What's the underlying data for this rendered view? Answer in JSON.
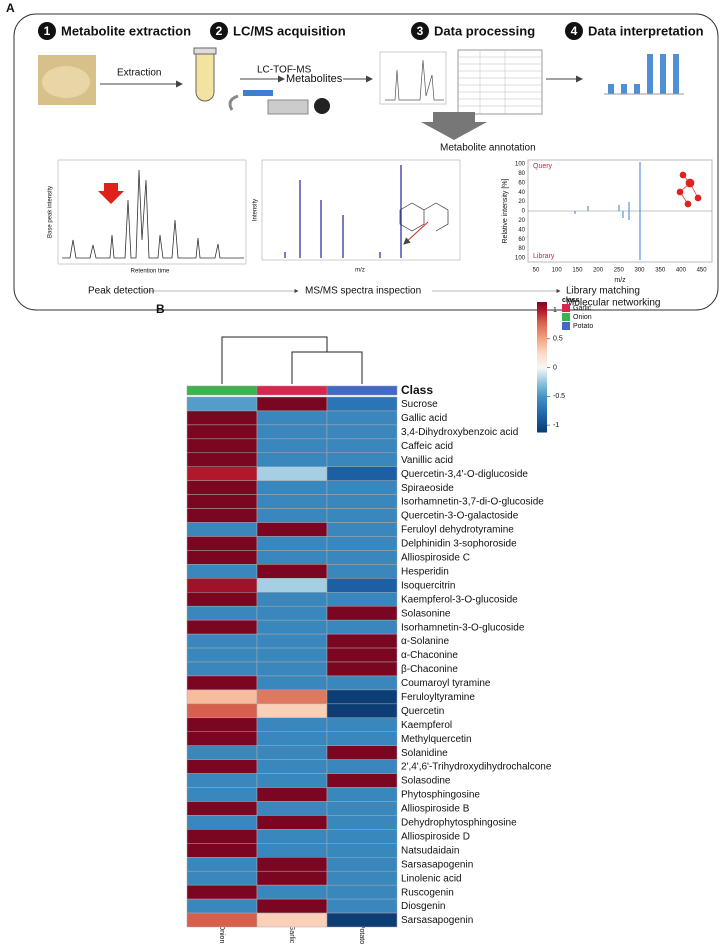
{
  "panel_a": {
    "panel_label": "A",
    "steps": [
      {
        "number": "1",
        "title": "Metabolite extraction"
      },
      {
        "number": "2",
        "title": "LC/MS acquisition"
      },
      {
        "number": "3",
        "title": "Data processing"
      },
      {
        "number": "4",
        "title": "Data interpretation"
      }
    ],
    "extraction": "Extraction",
    "instrument": "LC-TOF-MS",
    "metabolites": "Metabolites",
    "annotation": "Metabolite annotation",
    "chromatogram": {
      "ylabel": "Base peak intensity",
      "xlabel": "Retention time"
    },
    "spectrum": {
      "ylabel": "Intensity",
      "xlabel": "m/z"
    },
    "mirror": {
      "query": "Query",
      "library": "Library",
      "ylabel": "Relative intensity [%]",
      "xlabel": "m/z",
      "yticks": [
        "100",
        "80",
        "60",
        "40",
        "20",
        "0",
        "20",
        "40",
        "60",
        "80",
        "100"
      ],
      "xticks": [
        "50",
        "100",
        "150",
        "200",
        "250",
        "300",
        "350",
        "400",
        "450"
      ]
    },
    "bottom": [
      "Peak detection",
      "MS/MS spectra inspection",
      "Library matching",
      "Molecular networking"
    ]
  },
  "chart_data": {
    "type": "heatmap",
    "panel_label": "B",
    "class_title": "Class",
    "columns": [
      "Onion",
      "Garlic",
      "Potato"
    ],
    "column_colors": [
      "#3cb44b",
      "#d7254f",
      "#4169c8"
    ],
    "rows": [
      "Sucrose",
      "Gallic acid",
      "3,4-Dihydroxybenzoic acid",
      "Caffeic acid",
      "Vanillic acid",
      "Quercetin-3,4'-O-diglucoside",
      "Spiraeoside",
      "Isorhamnetin-3,7-di-O-glucoside",
      "Quercetin-3-O-galactoside",
      "Feruloyl dehydrotyramine",
      "Delphinidin 3-sophoroside",
      "Alliospiroside C",
      "Hesperidin",
      "Isoquercitrin",
      "Kaempferol-3-O-glucoside",
      "Solasonine",
      "Isorhamnetin-3-O-glucoside",
      "α-Solanine",
      "α-Chaconine",
      "β-Chaconine",
      "Coumaroyl tyramine",
      "Feruloyltyramine",
      "Quercetin",
      "Kaempferol",
      "Methylquercetin",
      "Solanidine",
      "2',4',6'-Trihydroxydihydrochalcone",
      "Solasodine",
      "Phytosphingosine",
      " Alliospiroside B",
      "Dehydrophytosphingosine",
      "Alliospiroside D",
      "Natsudaidain",
      "Sarsasapogenin",
      "Linolenic acid",
      "Ruscogenin",
      "Diosgenin",
      "Sarsasapogenin"
    ],
    "values": [
      [
        -0.45,
        1.15,
        -0.7
      ],
      [
        1.15,
        -0.58,
        -0.58
      ],
      [
        1.15,
        -0.58,
        -0.58
      ],
      [
        1.15,
        -0.58,
        -0.58
      ],
      [
        1.15,
        -0.58,
        -0.58
      ],
      [
        1.0,
        -0.2,
        -0.85
      ],
      [
        1.15,
        -0.58,
        -0.58
      ],
      [
        1.15,
        -0.58,
        -0.58
      ],
      [
        1.15,
        -0.58,
        -0.58
      ],
      [
        -0.58,
        1.15,
        -0.58
      ],
      [
        1.15,
        -0.58,
        -0.58
      ],
      [
        1.15,
        -0.58,
        -0.58
      ],
      [
        -0.58,
        1.15,
        -0.58
      ],
      [
        1.05,
        -0.2,
        -0.85
      ],
      [
        1.15,
        -0.58,
        -0.58
      ],
      [
        -0.58,
        -0.58,
        1.15
      ],
      [
        1.15,
        -0.58,
        -0.58
      ],
      [
        -0.58,
        -0.58,
        1.15
      ],
      [
        -0.58,
        -0.58,
        1.15
      ],
      [
        -0.58,
        -0.58,
        1.15
      ],
      [
        1.15,
        -0.58,
        -0.58
      ],
      [
        0.4,
        0.7,
        -1.1
      ],
      [
        0.8,
        0.3,
        -1.1
      ],
      [
        1.15,
        -0.58,
        -0.58
      ],
      [
        1.15,
        -0.58,
        -0.58
      ],
      [
        -0.58,
        -0.58,
        1.15
      ],
      [
        1.15,
        -0.58,
        -0.58
      ],
      [
        -0.58,
        -0.58,
        1.15
      ],
      [
        -0.58,
        1.15,
        -0.58
      ],
      [
        1.15,
        -0.58,
        -0.58
      ],
      [
        -0.58,
        1.15,
        -0.58
      ],
      [
        1.15,
        -0.58,
        -0.58
      ],
      [
        1.15,
        -0.58,
        -0.58
      ],
      [
        -0.58,
        1.15,
        -0.58
      ],
      [
        -0.58,
        1.15,
        -0.58
      ],
      [
        1.15,
        -0.58,
        -0.58
      ],
      [
        -0.58,
        1.15,
        -0.58
      ],
      [
        0.8,
        0.3,
        -1.1
      ]
    ],
    "colorbar_lim": [
      -1.12,
      1.14
    ],
    "colorbar_ticks": [
      1,
      0.5,
      0,
      -0.5,
      -1
    ],
    "legend": {
      "title": "class",
      "entries": [
        "Garlic",
        "Onion",
        "Potato"
      ],
      "colors": [
        "#d7254f",
        "#3cb44b",
        "#4169c8"
      ]
    }
  }
}
